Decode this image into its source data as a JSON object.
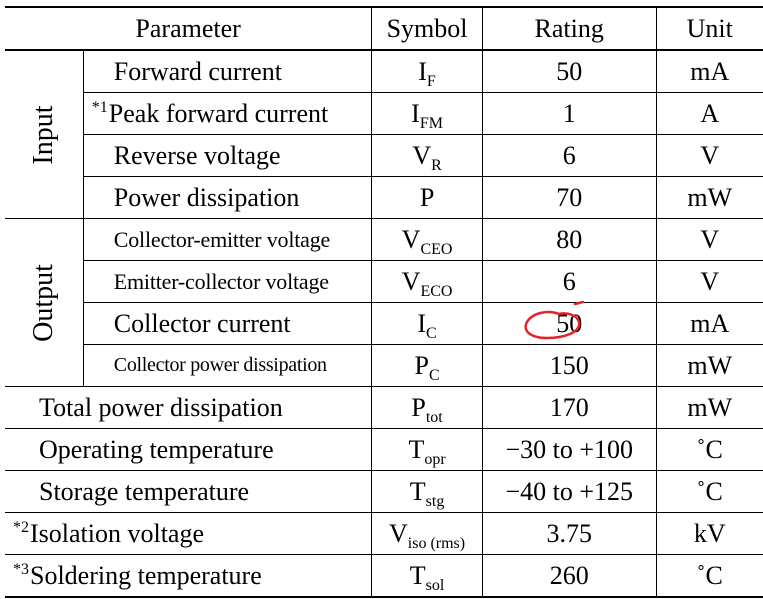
{
  "headers": {
    "parameter": "Parameter",
    "symbol": "Symbol",
    "rating": "Rating",
    "unit": "Unit"
  },
  "groups": {
    "input": "Input",
    "output": "Output"
  },
  "rows": [
    {
      "note": "",
      "param": "Forward current",
      "sym": "I",
      "sub": "F",
      "rating": "50",
      "unit": "mA"
    },
    {
      "note": "*1",
      "param": "Peak forward current",
      "sym": "I",
      "sub": "FM",
      "rating": "1",
      "unit": "A"
    },
    {
      "note": "",
      "param": "Reverse voltage",
      "sym": "V",
      "sub": "R",
      "rating": "6",
      "unit": "V"
    },
    {
      "note": "",
      "param": "Power dissipation",
      "sym": "P",
      "sub": "",
      "rating": "70",
      "unit": "mW"
    },
    {
      "note": "",
      "param": "Collector-emitter voltage",
      "sym": "V",
      "sub": "CEO",
      "rating": "80",
      "unit": "V"
    },
    {
      "note": "",
      "param": "Emitter-collector voltage",
      "sym": "V",
      "sub": "ECO",
      "rating": "6",
      "unit": "V"
    },
    {
      "note": "",
      "param": "Collector current",
      "sym": "I",
      "sub": "C",
      "rating": "50",
      "unit": "mA"
    },
    {
      "note": "",
      "param": "Collector power dissipation",
      "sym": "P",
      "sub": "C",
      "rating": "150",
      "unit": "mW"
    },
    {
      "note": "",
      "param": "Total power dissipation",
      "sym": "P",
      "sub": "tot",
      "rating": "170",
      "unit": "mW"
    },
    {
      "note": "",
      "param": "Operating temperature",
      "sym": "T",
      "sub": "opr",
      "rating": "−30 to +100",
      "unit": "˚C"
    },
    {
      "note": "",
      "param": "Storage temperature",
      "sym": "T",
      "sub": "stg",
      "rating": "−40 to +125",
      "unit": "˚C"
    },
    {
      "note": "*2",
      "param": "Isolation voltage",
      "sym": "V",
      "sub": "iso (rms)",
      "rating": "3.75",
      "unit": "kV"
    },
    {
      "note": "*3",
      "param": "Soldering temperature",
      "sym": "T",
      "sub": "sol",
      "rating": "260",
      "unit": "˚C"
    }
  ],
  "annotation": {
    "color": "#e8202a",
    "highlighted_row": "Collector current"
  }
}
